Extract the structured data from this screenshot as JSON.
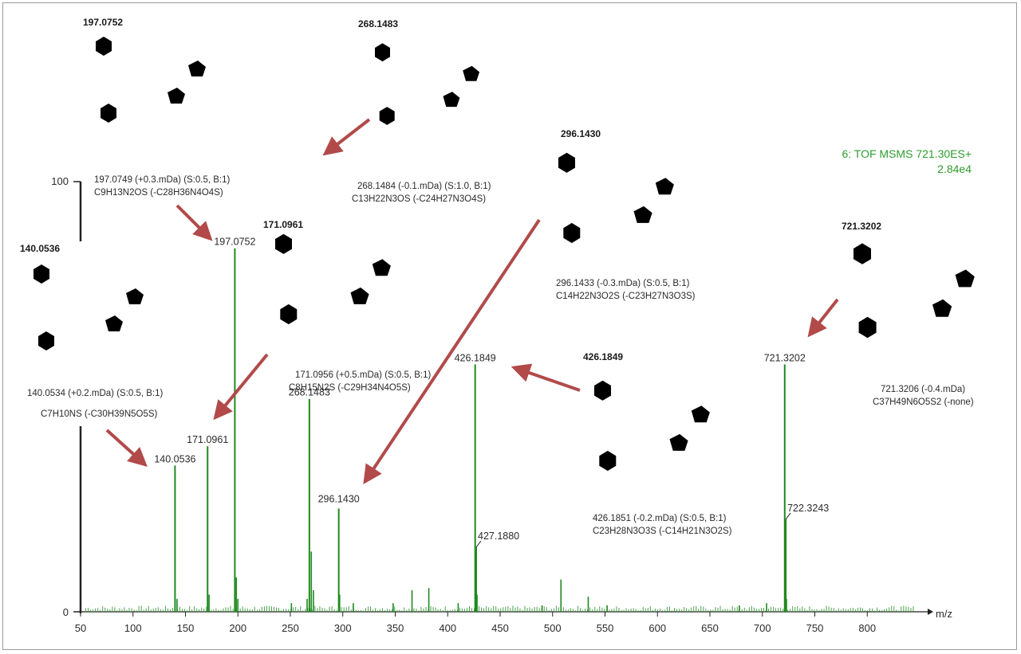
{
  "chart_data": {
    "type": "bar",
    "title": "",
    "instrument_label": "6: TOF MSMS 721.30ES+",
    "intensity_label": "2.84e4",
    "xlabel": "m/z",
    "ylabel": "",
    "xlim": [
      50,
      850
    ],
    "ylim": [
      0,
      100
    ],
    "y_ticks": [
      "0",
      "100"
    ],
    "x_ticks": [
      50,
      100,
      150,
      200,
      250,
      300,
      350,
      400,
      450,
      500,
      550,
      600,
      650,
      700,
      750,
      800
    ],
    "peaks": [
      {
        "mz": 140.0536,
        "intensity": 34,
        "label": "140.0536"
      },
      {
        "mz": 171.0961,
        "intensity": 38.5,
        "label": "171.0961"
      },
      {
        "mz": 197.0752,
        "intensity": 84.5,
        "label": "197.0752"
      },
      {
        "mz": 268.1483,
        "intensity": 49.5,
        "label": "268.1483"
      },
      {
        "mz": 296.143,
        "intensity": 24,
        "label": "296.1430"
      },
      {
        "mz": 426.1849,
        "intensity": 57.5,
        "label": "426.1849"
      },
      {
        "mz": 427.188,
        "intensity": 15,
        "label": "427.1880"
      },
      {
        "mz": 721.3202,
        "intensity": 57.5,
        "label": "721.3202"
      },
      {
        "mz": 722.3243,
        "intensity": 21.5,
        "label": "722.3243"
      }
    ],
    "minor_peaks": [
      {
        "mz": 142,
        "intensity": 3
      },
      {
        "mz": 172.5,
        "intensity": 4
      },
      {
        "mz": 198.5,
        "intensity": 8
      },
      {
        "mz": 200,
        "intensity": 3
      },
      {
        "mz": 251,
        "intensity": 2
      },
      {
        "mz": 266,
        "intensity": 3
      },
      {
        "mz": 270,
        "intensity": 14
      },
      {
        "mz": 272,
        "intensity": 5
      },
      {
        "mz": 297,
        "intensity": 4
      },
      {
        "mz": 310,
        "intensity": 2
      },
      {
        "mz": 348,
        "intensity": 2
      },
      {
        "mz": 366,
        "intensity": 5
      },
      {
        "mz": 382,
        "intensity": 5.5
      },
      {
        "mz": 410,
        "intensity": 2
      },
      {
        "mz": 428,
        "intensity": 4
      },
      {
        "mz": 490,
        "intensity": 1.5
      },
      {
        "mz": 508,
        "intensity": 7.5
      },
      {
        "mz": 534,
        "intensity": 3.5
      },
      {
        "mz": 552,
        "intensity": 1.5
      },
      {
        "mz": 678,
        "intensity": 1.5
      },
      {
        "mz": 704,
        "intensity": 2
      },
      {
        "mz": 723,
        "intensity": 3
      }
    ],
    "fragments": [
      {
        "header": "197.0752",
        "line1": "197.0749 (+0.3.mDa) (S:0.5, B:1)",
        "formula": "C9H13N2OS (-C28H36N4O4S)"
      },
      {
        "header": "268.1483",
        "line1": "268.1484 (-0.1.mDa) (S:1.0, B:1)",
        "formula": "C13H22N3OS (-C24H27N3O4S)"
      },
      {
        "header": "296.1430",
        "line1": "296.1433 (-0.3.mDa) (S:0.5, B:1)",
        "formula": "C14H22N3O2S (-C23H27N3O3S)"
      },
      {
        "header": "171.0961",
        "line1": "171.0956 (+0.5.mDa) (S:0.5, B:1)",
        "formula": "C8H15N2S (-C29H34N4O5S)"
      },
      {
        "header": "140.0536",
        "line1": "140.0534 (+0.2.mDa) (S:0.5, B:1)",
        "formula": "C7H10NS (-C30H39N5O5S)"
      },
      {
        "header": "426.1849",
        "line1": "426.1851 (-0.2.mDa) (S:0.5, B:1)",
        "formula": "C23H28N3O3S (-C14H21N3O2S)"
      },
      {
        "header": "721.3202",
        "line1": "721.3206 (-0.4.mDa)",
        "formula": "C37H49N6O5S2 (-none)"
      }
    ]
  }
}
